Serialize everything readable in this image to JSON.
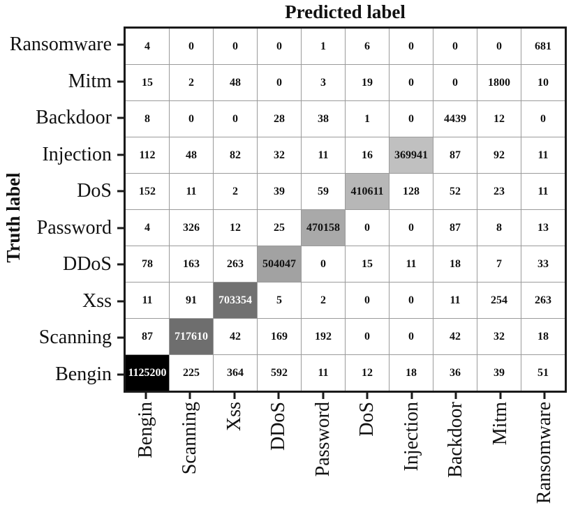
{
  "chart_data": {
    "type": "heatmap",
    "subtype": "confusion-matrix",
    "title": "Predicted label",
    "ylabel": "Truth label",
    "row_labels": [
      "Ransomware",
      "Mitm",
      "Backdoor",
      "Injection",
      "DoS",
      "Password",
      "DDoS",
      "Xss",
      "Scanning",
      "Bengin"
    ],
    "col_labels": [
      "Bengin",
      "Scanning",
      "Xss",
      "DDoS",
      "Password",
      "DoS",
      "Injection",
      "Backdoor",
      "Mitm",
      "Ransomware"
    ],
    "matrix": [
      [
        4,
        0,
        0,
        0,
        1,
        6,
        0,
        0,
        0,
        681
      ],
      [
        15,
        2,
        48,
        0,
        3,
        19,
        0,
        0,
        1800,
        10
      ],
      [
        8,
        0,
        0,
        28,
        38,
        1,
        0,
        4439,
        12,
        0
      ],
      [
        112,
        48,
        82,
        32,
        11,
        16,
        369941,
        87,
        92,
        11
      ],
      [
        152,
        11,
        2,
        39,
        59,
        410611,
        128,
        52,
        23,
        11
      ],
      [
        4,
        326,
        12,
        25,
        470158,
        0,
        0,
        87,
        8,
        13
      ],
      [
        78,
        163,
        263,
        504047,
        0,
        15,
        11,
        18,
        7,
        33
      ],
      [
        11,
        91,
        703354,
        5,
        2,
        0,
        0,
        11,
        254,
        263
      ],
      [
        87,
        717610,
        42,
        169,
        192,
        0,
        0,
        42,
        32,
        18
      ],
      [
        1125200,
        225,
        364,
        592,
        11,
        12,
        18,
        36,
        39,
        51
      ]
    ],
    "colormap": {
      "low": "#ffffff",
      "high": "#000000",
      "max_value": 1125200,
      "gamma": 1.25,
      "annot_dark": "#111111",
      "annot_light": "#ffffff"
    },
    "grid_line_color": "#9a9a9a",
    "border_color": "#1a1a1a",
    "legend": "none",
    "axis_ticks": "short outward ticks on left and bottom"
  }
}
